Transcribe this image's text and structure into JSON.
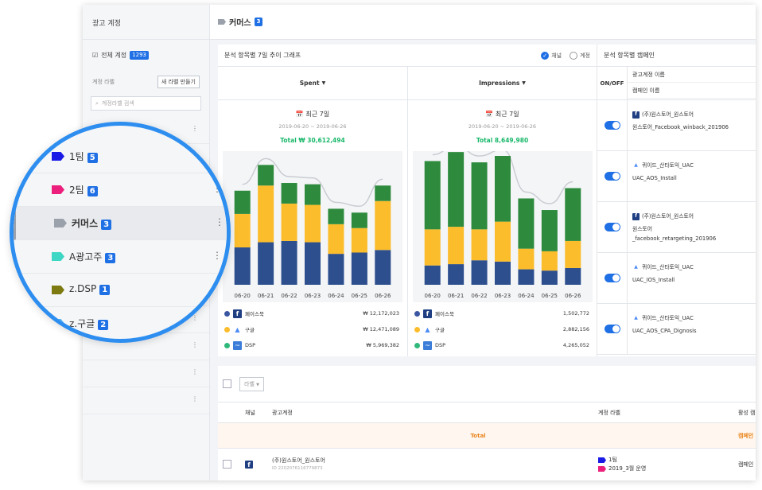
{
  "sidebar": {
    "header": "광고 계정",
    "all_accounts": {
      "label": "전체 계정",
      "count": "1293"
    },
    "label_section": "계정 라벨",
    "new_label_button": "새 라벨 만들기",
    "search_placeholder": "계정라벨 검색"
  },
  "magnifier": {
    "items": [
      {
        "name": "1팀",
        "count": "5",
        "color": "#1a1ae6"
      },
      {
        "name": "2팀",
        "count": "6",
        "color": "#ec1f7c"
      },
      {
        "name": "커머스",
        "count": "3",
        "color": "#9aa1ab",
        "selected": true
      },
      {
        "name": "A광고주",
        "count": "3",
        "color": "#3ed6c4"
      },
      {
        "name": "z.DSP",
        "count": "1",
        "color": "#7d7a12"
      },
      {
        "name": "z.구글",
        "count": "2",
        "color": "#4ab1f0"
      }
    ]
  },
  "topbar": {
    "title": "커머스",
    "count": "3"
  },
  "graph_panel": {
    "title": "분석 항목별 7일 추이 그래프",
    "radio_channel": "채널",
    "radio_account": "계정",
    "columns": [
      {
        "metric": "Spent",
        "period": "최근 7일",
        "date_range": "2019-06-20 ~ 2019-06-26",
        "total": "Total  ₩ 30,612,494",
        "legend": [
          {
            "name": "페이스북",
            "value": "₩ 12,172,023",
            "color": "#3b56a0",
            "icon": "facebook-icon"
          },
          {
            "name": "구글",
            "value": "₩ 12,471,089",
            "color": "#fbbd2c",
            "icon": "google-ads-icon"
          },
          {
            "name": "DSP",
            "value": "₩ 5,969,382",
            "color": "#2fb87a",
            "icon": "dsp-icon"
          }
        ]
      },
      {
        "metric": "Impressions",
        "period": "최근 7일",
        "date_range": "2019-06-20 ~ 2019-06-26",
        "total": "Total  8,649,980",
        "legend": [
          {
            "name": "페이스북",
            "value": "1,502,772",
            "color": "#3b56a0",
            "icon": "facebook-icon"
          },
          {
            "name": "구글",
            "value": "2,882,156",
            "color": "#fbbd2c",
            "icon": "google-ads-icon"
          },
          {
            "name": "DSP",
            "value": "4,265,052",
            "color": "#2fb87a",
            "icon": "dsp-icon"
          }
        ]
      }
    ]
  },
  "chart_data": [
    {
      "type": "bar",
      "categories": [
        "06-20",
        "06-21",
        "06-22",
        "06-23",
        "06-24",
        "06-25",
        "06-26"
      ],
      "series": [
        {
          "name": "페이스북",
          "values": [
            29,
            33,
            34,
            33,
            24,
            25,
            27
          ]
        },
        {
          "name": "구글",
          "values": [
            26,
            44,
            29,
            29,
            23,
            19,
            38
          ]
        },
        {
          "name": "DSP",
          "values": [
            18,
            16,
            16,
            16,
            12,
            12,
            12
          ]
        }
      ],
      "colors": [
        "#2d4f8e",
        "#fbbd2c",
        "#2e8b3e"
      ],
      "ylim": [
        0,
        100
      ],
      "grid": false
    },
    {
      "type": "bar",
      "categories": [
        "06-20",
        "06-21",
        "06-22",
        "06-23",
        "06-24",
        "06-25",
        "06-26"
      ],
      "series": [
        {
          "name": "페이스북",
          "values": [
            15,
            16,
            19,
            18,
            12,
            11,
            13
          ]
        },
        {
          "name": "구글",
          "values": [
            28,
            29,
            24,
            31,
            16,
            15,
            21
          ]
        },
        {
          "name": "DSP",
          "values": [
            53,
            58,
            52,
            51,
            39,
            32,
            41
          ]
        }
      ],
      "colors": [
        "#2d4f8e",
        "#fbbd2c",
        "#2e8b3e"
      ],
      "ylim": [
        0,
        100
      ],
      "grid": false
    }
  ],
  "campaign_panel": {
    "title": "분석 항목별 캠페인",
    "onoff_header": "ON/OFF",
    "account_header": "광고계정 이름",
    "campaign_header": "캠페인 이름",
    "rows": [
      {
        "channel": "facebook",
        "account": "(주)원스토어_원스토어",
        "campaign": "원스토어_Facebook_winback_201906"
      },
      {
        "channel": "google",
        "account": "퀴이드_산타토익_UAC",
        "campaign": "UAC_AOS_Install"
      },
      {
        "channel": "facebook",
        "account": "(주)원스토어_원스토어",
        "campaign": "원스토어\n_facebook_retargeting_201906"
      },
      {
        "channel": "google",
        "account": "퀴이드_산타토익_UAC",
        "campaign": "UAC_IOS_Install"
      },
      {
        "channel": "google",
        "account": "퀴이드_산타토익_UAC",
        "campaign": "UAC_AOS_CPA_Dignosis"
      }
    ]
  },
  "table": {
    "label_dropdown": "라벨",
    "headers": {
      "channel": "채널",
      "account": "광고계정",
      "label": "계정 라벨",
      "active": "활성 캠"
    },
    "total_label": "Total",
    "total_right": "캠페인",
    "row": {
      "account": "(주)원스토어_원스토어",
      "account_id": "ID 2202076116779873",
      "labels": [
        {
          "name": "1팀",
          "color": "#1a1ae6"
        },
        {
          "name": "2019_3월 운영",
          "color": "#ec1f7c"
        }
      ],
      "active": "캠페인"
    }
  }
}
